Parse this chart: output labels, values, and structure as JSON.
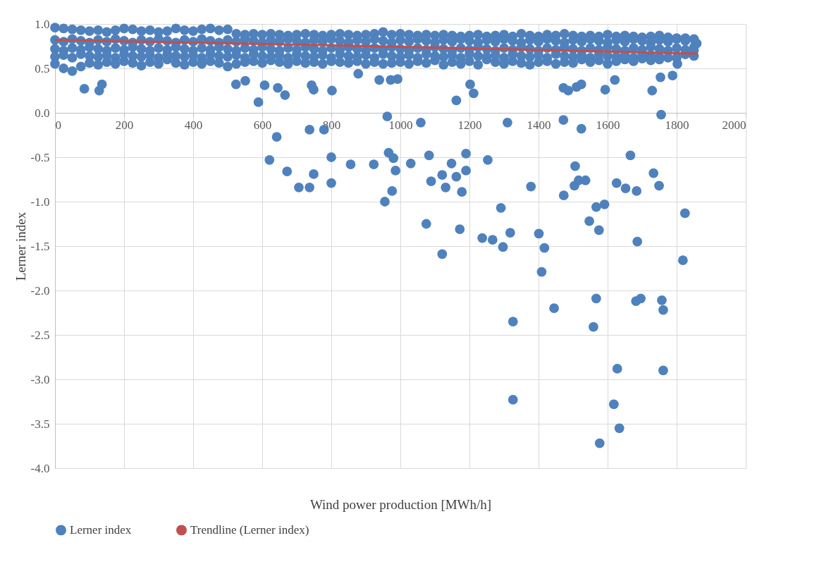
{
  "chart_data": {
    "type": "scatter",
    "xlabel": "Wind power production [MWh/h]",
    "ylabel": "Lerner index",
    "xlim": [
      0,
      2000
    ],
    "xticks": [
      0,
      200,
      400,
      600,
      800,
      1000,
      1200,
      1400,
      1600,
      1800,
      2000
    ],
    "ylim": [
      -4,
      1
    ],
    "yticks": [
      {
        "value": -4,
        "label": "-4.0"
      },
      {
        "value": -3.5,
        "label": "-3.5"
      },
      {
        "value": -3,
        "label": "-3.0"
      },
      {
        "value": -2.5,
        "label": "-2.5"
      },
      {
        "value": -2,
        "label": "-2.0"
      },
      {
        "value": -1.5,
        "label": "-1.5"
      },
      {
        "value": -1,
        "label": "-1.0"
      },
      {
        "value": -0.5,
        "label": "-0.5"
      },
      {
        "value": 0,
        "label": "0.0"
      },
      {
        "value": 0.5,
        "label": "0.5"
      },
      {
        "value": 1,
        "label": "1.0"
      }
    ],
    "grid": true,
    "legend": "bottom",
    "marker": "circle",
    "series": [
      {
        "name": "Lerner index",
        "color": "#4f81bd",
        "x": [
          0,
          25,
          50,
          75,
          100,
          125,
          150,
          175,
          200,
          225,
          250,
          275,
          300,
          325,
          350,
          375,
          400,
          425,
          450,
          475,
          500,
          525,
          550,
          575,
          600,
          625,
          650,
          675,
          700,
          725,
          750,
          775,
          800,
          825,
          850,
          875,
          900,
          925,
          950,
          975,
          1000,
          1025,
          1050,
          1075,
          1100,
          1125,
          1150,
          1175,
          1200,
          1225,
          1250,
          1275,
          1300,
          1325,
          1350,
          1375,
          1400,
          1425,
          1450,
          1475,
          1500,
          1525,
          1550,
          1575,
          1600,
          1625,
          1650,
          1675,
          1700,
          1725,
          1750,
          1775,
          1800,
          1825,
          1850,
          0,
          25,
          50,
          75,
          100,
          125,
          150,
          175,
          200,
          225,
          250,
          275,
          300,
          325,
          350,
          375,
          400,
          425,
          450,
          475,
          500,
          525,
          550,
          575,
          600,
          625,
          650,
          675,
          700,
          725,
          750,
          775,
          800,
          825,
          850,
          875,
          900,
          925,
          950,
          975,
          1000,
          1025,
          1050,
          1075,
          1100,
          1125,
          1150,
          1175,
          1200,
          1225,
          1250,
          1275,
          1300,
          1325,
          1350,
          1375,
          1400,
          1425,
          1450,
          1475,
          1500,
          1525,
          1550,
          1575,
          1600,
          1625,
          1650,
          1675,
          1700,
          1725,
          1750,
          1775,
          1800,
          1825,
          0,
          25,
          50,
          75,
          100,
          125,
          150,
          175,
          200,
          225,
          250,
          275,
          300,
          325,
          350,
          375,
          400,
          425,
          450,
          475,
          500,
          525,
          550,
          575,
          600,
          625,
          650,
          675,
          700,
          725,
          750,
          775,
          800,
          825,
          850,
          875,
          900,
          925,
          950,
          975,
          1000,
          1025,
          1050,
          1075,
          1100,
          1125,
          1150,
          1175,
          1200,
          1225,
          1250,
          1275,
          1300,
          1325,
          1350,
          1375,
          1400,
          1425,
          1450,
          1475,
          1500,
          1525,
          1550,
          1575,
          1600,
          1625,
          1650,
          1675,
          1700,
          1725,
          1750,
          1775,
          1800,
          1825,
          1850,
          0,
          25,
          50,
          75,
          100,
          125,
          150,
          175,
          200,
          225,
          250,
          275,
          300,
          325,
          350,
          375,
          400,
          425,
          450,
          475,
          500,
          525,
          550,
          575,
          600,
          625,
          650,
          675,
          700,
          725,
          750,
          775,
          800,
          825,
          850,
          875,
          900,
          925,
          950,
          975,
          1000,
          1025,
          1050,
          1075,
          1100,
          1125,
          1150,
          1175,
          1200,
          1225,
          1250,
          1275,
          1300,
          1325,
          1350,
          1375,
          1400,
          1425,
          1450,
          1475,
          1500,
          1525,
          1550,
          1575,
          1600,
          1625,
          1650,
          1675,
          1700,
          1725,
          1750,
          1800,
          1825,
          1850,
          0,
          25,
          50,
          75,
          100,
          125,
          150,
          175,
          200,
          225,
          250,
          275,
          300,
          325,
          350,
          375,
          400,
          425,
          450,
          475,
          500,
          525,
          550,
          575,
          600,
          625,
          650,
          675,
          700,
          725,
          750,
          775,
          800,
          825,
          850,
          875,
          900,
          925,
          950,
          975,
          1000,
          1025,
          1050,
          1075,
          1100,
          1125,
          1150,
          1175,
          1200,
          1225,
          1250,
          1275,
          1300,
          1325,
          1350,
          1375,
          1400,
          1425,
          1450,
          1475,
          1500,
          1525,
          1550,
          1575,
          1600,
          1625,
          1650,
          1675,
          1700,
          1725,
          1750,
          1775,
          1825,
          1850,
          1858,
          85,
          128,
          136,
          524,
          551,
          607,
          645,
          666,
          589,
          743,
          749,
          802,
          878,
          939,
          972,
          992,
          962,
          642,
          737,
          779,
          1162,
          1202,
          1212,
          1472,
          1486,
          1510,
          1524,
          1593,
          1621,
          1729,
          1753,
          1788,
          1802,
          1059,
          1310,
          1472,
          1524,
          1755,
          621,
          672,
          706,
          737,
          749,
          800,
          800,
          856,
          966,
          980,
          923,
          986,
          1030,
          1083,
          1148,
          1190,
          1190,
          1253,
          1121,
          1162,
          1089,
          1131,
          1178,
          976,
          955,
          1318,
          1291,
          1237,
          1267,
          1297,
          1075,
          1172,
          1121,
          1378,
          1401,
          1417,
          1409,
          1473,
          1506,
          1504,
          1516,
          1536,
          1567,
          1591,
          1547,
          1575,
          1666,
          1626,
          1652,
          1684,
          1733,
          1749,
          1686,
          1824,
          1818,
          1567,
          1682,
          1696,
          1757,
          1761,
          1445,
          1326,
          1559,
          1628,
          1761,
          1326,
          1618,
          1634,
          1577
        ],
        "values": [
          0.96,
          0.95,
          0.94,
          0.93,
          0.92,
          0.93,
          0.91,
          0.93,
          0.95,
          0.94,
          0.92,
          0.93,
          0.91,
          0.92,
          0.95,
          0.93,
          0.92,
          0.94,
          0.95,
          0.93,
          0.94,
          0.89,
          0.88,
          0.89,
          0.88,
          0.89,
          0.88,
          0.87,
          0.88,
          0.89,
          0.88,
          0.87,
          0.88,
          0.89,
          0.88,
          0.87,
          0.88,
          0.89,
          0.91,
          0.88,
          0.89,
          0.88,
          0.87,
          0.88,
          0.87,
          0.88,
          0.87,
          0.86,
          0.87,
          0.88,
          0.86,
          0.87,
          0.88,
          0.86,
          0.89,
          0.87,
          0.86,
          0.88,
          0.87,
          0.89,
          0.87,
          0.86,
          0.87,
          0.86,
          0.88,
          0.86,
          0.87,
          0.86,
          0.85,
          0.86,
          0.87,
          0.85,
          0.84,
          0.84,
          0.83,
          0.82,
          0.8,
          0.83,
          0.81,
          0.79,
          0.82,
          0.8,
          0.83,
          0.81,
          0.79,
          0.82,
          0.8,
          0.83,
          0.81,
          0.79,
          0.82,
          0.8,
          0.83,
          0.81,
          0.79,
          0.82,
          0.8,
          0.83,
          0.81,
          0.79,
          0.82,
          0.8,
          0.83,
          0.81,
          0.79,
          0.82,
          0.8,
          0.83,
          0.81,
          0.79,
          0.82,
          0.8,
          0.83,
          0.81,
          0.79,
          0.82,
          0.8,
          0.83,
          0.81,
          0.79,
          0.82,
          0.8,
          0.83,
          0.81,
          0.79,
          0.82,
          0.8,
          0.83,
          0.81,
          0.79,
          0.82,
          0.8,
          0.83,
          0.81,
          0.79,
          0.82,
          0.8,
          0.83,
          0.81,
          0.79,
          0.82,
          0.8,
          0.83,
          0.81,
          0.79,
          0.82,
          0.8,
          0.83,
          0.81,
          0.72,
          0.7,
          0.73,
          0.71,
          0.74,
          0.72,
          0.7,
          0.73,
          0.71,
          0.74,
          0.72,
          0.7,
          0.73,
          0.71,
          0.74,
          0.72,
          0.7,
          0.73,
          0.71,
          0.74,
          0.72,
          0.7,
          0.73,
          0.71,
          0.74,
          0.72,
          0.7,
          0.73,
          0.71,
          0.74,
          0.72,
          0.7,
          0.73,
          0.71,
          0.74,
          0.72,
          0.7,
          0.73,
          0.71,
          0.74,
          0.72,
          0.7,
          0.73,
          0.71,
          0.74,
          0.72,
          0.7,
          0.73,
          0.71,
          0.74,
          0.72,
          0.7,
          0.73,
          0.71,
          0.74,
          0.72,
          0.7,
          0.73,
          0.71,
          0.74,
          0.72,
          0.7,
          0.73,
          0.71,
          0.74,
          0.72,
          0.7,
          0.73,
          0.71,
          0.74,
          0.72,
          0.7,
          0.73,
          0.71,
          0.74,
          0.63,
          0.65,
          0.62,
          0.66,
          0.64,
          0.63,
          0.65,
          0.62,
          0.66,
          0.64,
          0.63,
          0.65,
          0.62,
          0.66,
          0.64,
          0.63,
          0.65,
          0.62,
          0.66,
          0.64,
          0.63,
          0.65,
          0.62,
          0.66,
          0.64,
          0.63,
          0.65,
          0.62,
          0.66,
          0.64,
          0.63,
          0.65,
          0.62,
          0.66,
          0.64,
          0.63,
          0.65,
          0.62,
          0.66,
          0.64,
          0.63,
          0.65,
          0.62,
          0.66,
          0.64,
          0.63,
          0.65,
          0.62,
          0.66,
          0.64,
          0.63,
          0.65,
          0.62,
          0.66,
          0.64,
          0.63,
          0.65,
          0.62,
          0.66,
          0.64,
          0.63,
          0.65,
          0.62,
          0.66,
          0.64,
          0.63,
          0.65,
          0.62,
          0.66,
          0.64,
          0.63,
          0.62,
          0.66,
          0.64,
          0.55,
          0.5,
          0.47,
          0.52,
          0.56,
          0.54,
          0.57,
          0.55,
          0.58,
          0.56,
          0.53,
          0.57,
          0.55,
          0.6,
          0.56,
          0.54,
          0.57,
          0.55,
          0.58,
          0.56,
          0.52,
          0.55,
          0.57,
          0.58,
          0.56,
          0.59,
          0.57,
          0.55,
          0.58,
          0.56,
          0.57,
          0.55,
          0.58,
          0.57,
          0.56,
          0.58,
          0.55,
          0.57,
          0.55,
          0.56,
          0.57,
          0.55,
          0.58,
          0.56,
          0.59,
          0.54,
          0.57,
          0.55,
          0.58,
          0.54,
          0.6,
          0.57,
          0.55,
          0.58,
          0.56,
          0.54,
          0.57,
          0.58,
          0.55,
          0.57,
          0.56,
          0.6,
          0.57,
          0.59,
          0.55,
          0.58,
          0.6,
          0.58,
          0.61,
          0.59,
          0.6,
          0.62,
          0.66,
          0.7,
          0.78,
          0.27,
          0.25,
          0.32,
          0.32,
          0.36,
          0.31,
          0.28,
          0.2,
          0.12,
          0.31,
          0.26,
          0.25,
          0.44,
          0.37,
          0.37,
          0.38,
          -0.04,
          -0.27,
          -0.19,
          -0.19,
          0.14,
          0.32,
          0.22,
          0.28,
          0.25,
          0.29,
          0.32,
          0.26,
          0.37,
          0.25,
          0.4,
          0.42,
          0.55,
          -0.11,
          -0.11,
          -0.08,
          -0.18,
          -0.02,
          -0.53,
          -0.66,
          -0.84,
          -0.84,
          -0.69,
          -0.5,
          -0.79,
          -0.58,
          -0.45,
          -0.51,
          -0.58,
          -0.65,
          -0.57,
          -0.48,
          -0.57,
          -0.46,
          -0.65,
          -0.53,
          -0.7,
          -0.72,
          -0.77,
          -0.84,
          -0.89,
          -0.88,
          -1.0,
          -1.35,
          -1.07,
          -1.41,
          -1.43,
          -1.51,
          -1.25,
          -1.31,
          -1.59,
          -0.83,
          -1.36,
          -1.52,
          -1.79,
          -0.93,
          -0.6,
          -0.82,
          -0.76,
          -0.76,
          -1.06,
          -1.03,
          -1.22,
          -1.32,
          -0.48,
          -0.79,
          -0.85,
          -0.88,
          -0.68,
          -0.82,
          -1.45,
          -1.13,
          -1.66,
          -2.09,
          -2.12,
          -2.09,
          -2.11,
          -2.22,
          -2.2,
          -2.35,
          -2.41,
          -2.88,
          -2.9,
          -3.23,
          -3.28,
          -3.55,
          -3.72
        ]
      },
      {
        "name": "Trendline (Lerner index)",
        "color": "#c0504d",
        "type": "line",
        "marker": "none",
        "line_style": "solid",
        "x": [
          0,
          400,
          800,
          1200,
          1600,
          1860
        ],
        "values": [
          0.82,
          0.79,
          0.76,
          0.725,
          0.69,
          0.665
        ]
      }
    ]
  }
}
